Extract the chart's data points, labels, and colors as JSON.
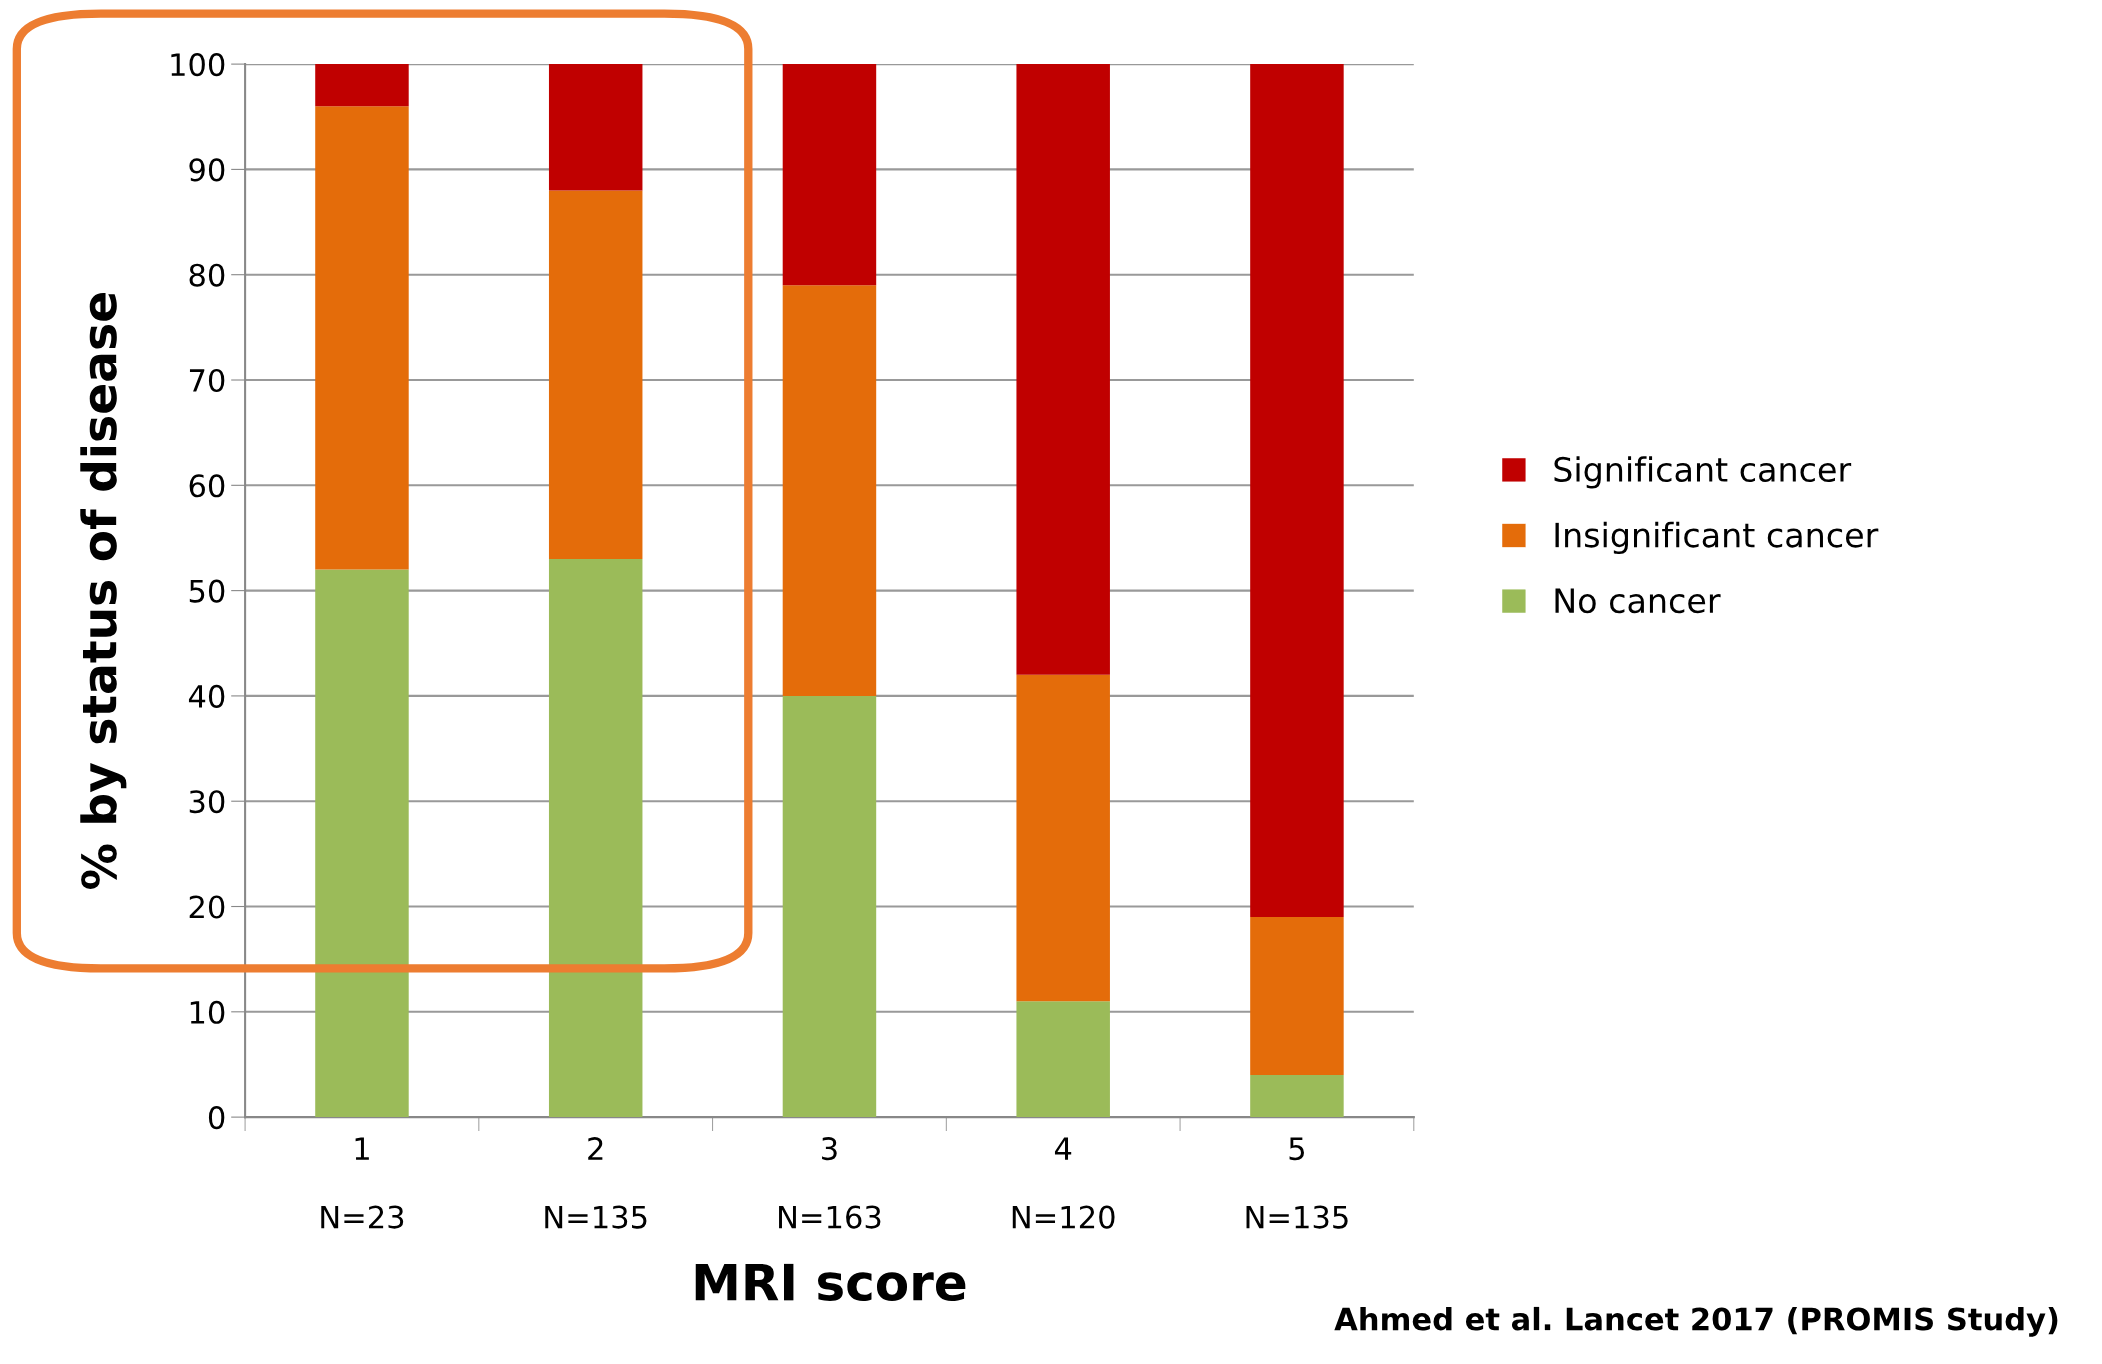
{
  "chart_data": {
    "type": "bar",
    "stacked": true,
    "xlabel": "MRI score",
    "ylabel": "% by status of disease",
    "categories": [
      "1\n\nN=23",
      "2\n\nN=135",
      "3\n\nN=163",
      "4\n\nN=120",
      "5\n\nN=135"
    ],
    "series": [
      {
        "name": "No cancer",
        "color": "#9bbb59",
        "values": [
          52,
          53,
          40,
          11,
          4
        ]
      },
      {
        "name": "Insignificant cancer",
        "color": "#e46c0a",
        "values": [
          44,
          35,
          39,
          31,
          15
        ]
      },
      {
        "name": "Significant cancer",
        "color": "#c00000",
        "values": [
          4,
          12,
          21,
          58,
          81
        ]
      }
    ],
    "ylim": [
      0,
      100
    ],
    "yticks": [
      0,
      10,
      20,
      30,
      40,
      50,
      60,
      70,
      80,
      90,
      100
    ],
    "grid": "y",
    "legend": "right",
    "annotations": [
      "Ahmed et al. Lancet 2017 (PROMIS Study)"
    ]
  }
}
